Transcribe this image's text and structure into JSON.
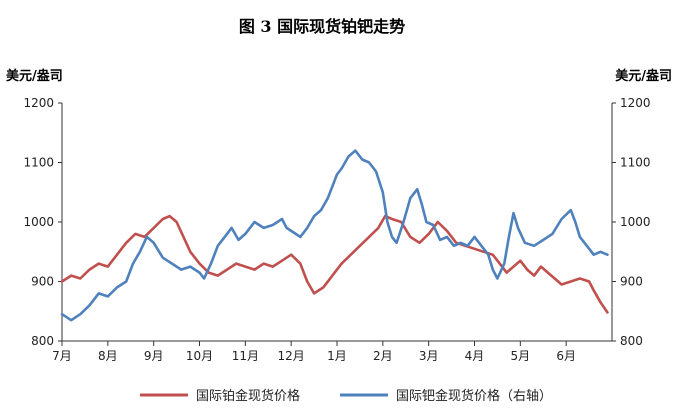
{
  "chart_data": {
    "type": "line",
    "title": "图  3   国际现货铂钯走势",
    "ylabel_left": "美元/盎司",
    "ylabel_right": "美元/盎司",
    "ylim": [
      800,
      1200
    ],
    "yticks": [
      800,
      900,
      1000,
      1100,
      1200
    ],
    "x_categories": [
      "7月",
      "8月",
      "9月",
      "10月",
      "11月",
      "12月",
      "1月",
      "2月",
      "3月",
      "4月",
      "5月",
      "6月"
    ],
    "grid": false,
    "legend_position": "bottom",
    "series": [
      {
        "name": "国际铂金现货价格",
        "axis": "left",
        "color": "#c0504d",
        "values": [
          [
            0.0,
            900
          ],
          [
            0.2,
            910
          ],
          [
            0.4,
            905
          ],
          [
            0.6,
            920
          ],
          [
            0.8,
            930
          ],
          [
            1.0,
            925
          ],
          [
            1.2,
            945
          ],
          [
            1.4,
            965
          ],
          [
            1.6,
            980
          ],
          [
            1.8,
            975
          ],
          [
            2.0,
            990
          ],
          [
            2.2,
            1005
          ],
          [
            2.35,
            1010
          ],
          [
            2.5,
            1000
          ],
          [
            2.65,
            975
          ],
          [
            2.8,
            950
          ],
          [
            3.0,
            930
          ],
          [
            3.2,
            915
          ],
          [
            3.4,
            910
          ],
          [
            3.6,
            920
          ],
          [
            3.8,
            930
          ],
          [
            4.0,
            925
          ],
          [
            4.2,
            920
          ],
          [
            4.4,
            930
          ],
          [
            4.6,
            925
          ],
          [
            4.8,
            935
          ],
          [
            5.0,
            945
          ],
          [
            5.2,
            930
          ],
          [
            5.35,
            900
          ],
          [
            5.5,
            880
          ],
          [
            5.7,
            890
          ],
          [
            5.9,
            910
          ],
          [
            6.1,
            930
          ],
          [
            6.3,
            945
          ],
          [
            6.5,
            960
          ],
          [
            6.7,
            975
          ],
          [
            6.9,
            990
          ],
          [
            7.05,
            1010
          ],
          [
            7.2,
            1005
          ],
          [
            7.4,
            1000
          ],
          [
            7.6,
            975
          ],
          [
            7.8,
            965
          ],
          [
            8.0,
            980
          ],
          [
            8.2,
            1000
          ],
          [
            8.4,
            985
          ],
          [
            8.6,
            965
          ],
          [
            8.8,
            960
          ],
          [
            9.0,
            955
          ],
          [
            9.2,
            950
          ],
          [
            9.4,
            945
          ],
          [
            9.55,
            930
          ],
          [
            9.7,
            915
          ],
          [
            9.85,
            925
          ],
          [
            10.0,
            935
          ],
          [
            10.15,
            920
          ],
          [
            10.3,
            910
          ],
          [
            10.45,
            925
          ],
          [
            10.6,
            915
          ],
          [
            10.75,
            905
          ],
          [
            10.9,
            895
          ],
          [
            11.1,
            900
          ],
          [
            11.3,
            905
          ],
          [
            11.5,
            900
          ],
          [
            11.6,
            885
          ],
          [
            11.75,
            865
          ],
          [
            11.9,
            848
          ]
        ]
      },
      {
        "name": "国际钯金现货价格（右轴）",
        "axis": "right",
        "color": "#4f81bd",
        "values": [
          [
            0.0,
            845
          ],
          [
            0.2,
            835
          ],
          [
            0.4,
            845
          ],
          [
            0.6,
            860
          ],
          [
            0.8,
            880
          ],
          [
            1.0,
            875
          ],
          [
            1.2,
            890
          ],
          [
            1.4,
            900
          ],
          [
            1.55,
            930
          ],
          [
            1.7,
            950
          ],
          [
            1.85,
            975
          ],
          [
            2.0,
            965
          ],
          [
            2.2,
            940
          ],
          [
            2.4,
            930
          ],
          [
            2.6,
            920
          ],
          [
            2.8,
            925
          ],
          [
            3.0,
            915
          ],
          [
            3.1,
            905
          ],
          [
            3.25,
            930
          ],
          [
            3.4,
            960
          ],
          [
            3.55,
            975
          ],
          [
            3.7,
            990
          ],
          [
            3.85,
            970
          ],
          [
            4.0,
            980
          ],
          [
            4.2,
            1000
          ],
          [
            4.4,
            990
          ],
          [
            4.6,
            995
          ],
          [
            4.8,
            1005
          ],
          [
            4.9,
            990
          ],
          [
            5.0,
            985
          ],
          [
            5.1,
            980
          ],
          [
            5.2,
            975
          ],
          [
            5.35,
            990
          ],
          [
            5.5,
            1010
          ],
          [
            5.65,
            1020
          ],
          [
            5.8,
            1040
          ],
          [
            5.9,
            1060
          ],
          [
            6.0,
            1080
          ],
          [
            6.1,
            1090
          ],
          [
            6.25,
            1110
          ],
          [
            6.4,
            1120
          ],
          [
            6.55,
            1105
          ],
          [
            6.7,
            1100
          ],
          [
            6.85,
            1085
          ],
          [
            7.0,
            1050
          ],
          [
            7.1,
            1000
          ],
          [
            7.2,
            975
          ],
          [
            7.3,
            965
          ],
          [
            7.45,
            1000
          ],
          [
            7.6,
            1040
          ],
          [
            7.75,
            1055
          ],
          [
            7.85,
            1030
          ],
          [
            7.95,
            1000
          ],
          [
            8.1,
            995
          ],
          [
            8.25,
            970
          ],
          [
            8.4,
            975
          ],
          [
            8.55,
            960
          ],
          [
            8.7,
            965
          ],
          [
            8.85,
            960
          ],
          [
            9.0,
            975
          ],
          [
            9.15,
            960
          ],
          [
            9.3,
            945
          ],
          [
            9.4,
            920
          ],
          [
            9.5,
            905
          ],
          [
            9.65,
            930
          ],
          [
            9.75,
            975
          ],
          [
            9.85,
            1015
          ],
          [
            9.95,
            990
          ],
          [
            10.1,
            965
          ],
          [
            10.3,
            960
          ],
          [
            10.5,
            970
          ],
          [
            10.7,
            980
          ],
          [
            10.9,
            1005
          ],
          [
            11.1,
            1020
          ],
          [
            11.2,
            1000
          ],
          [
            11.3,
            975
          ],
          [
            11.45,
            960
          ],
          [
            11.6,
            945
          ],
          [
            11.75,
            950
          ],
          [
            11.9,
            945
          ]
        ]
      }
    ]
  }
}
